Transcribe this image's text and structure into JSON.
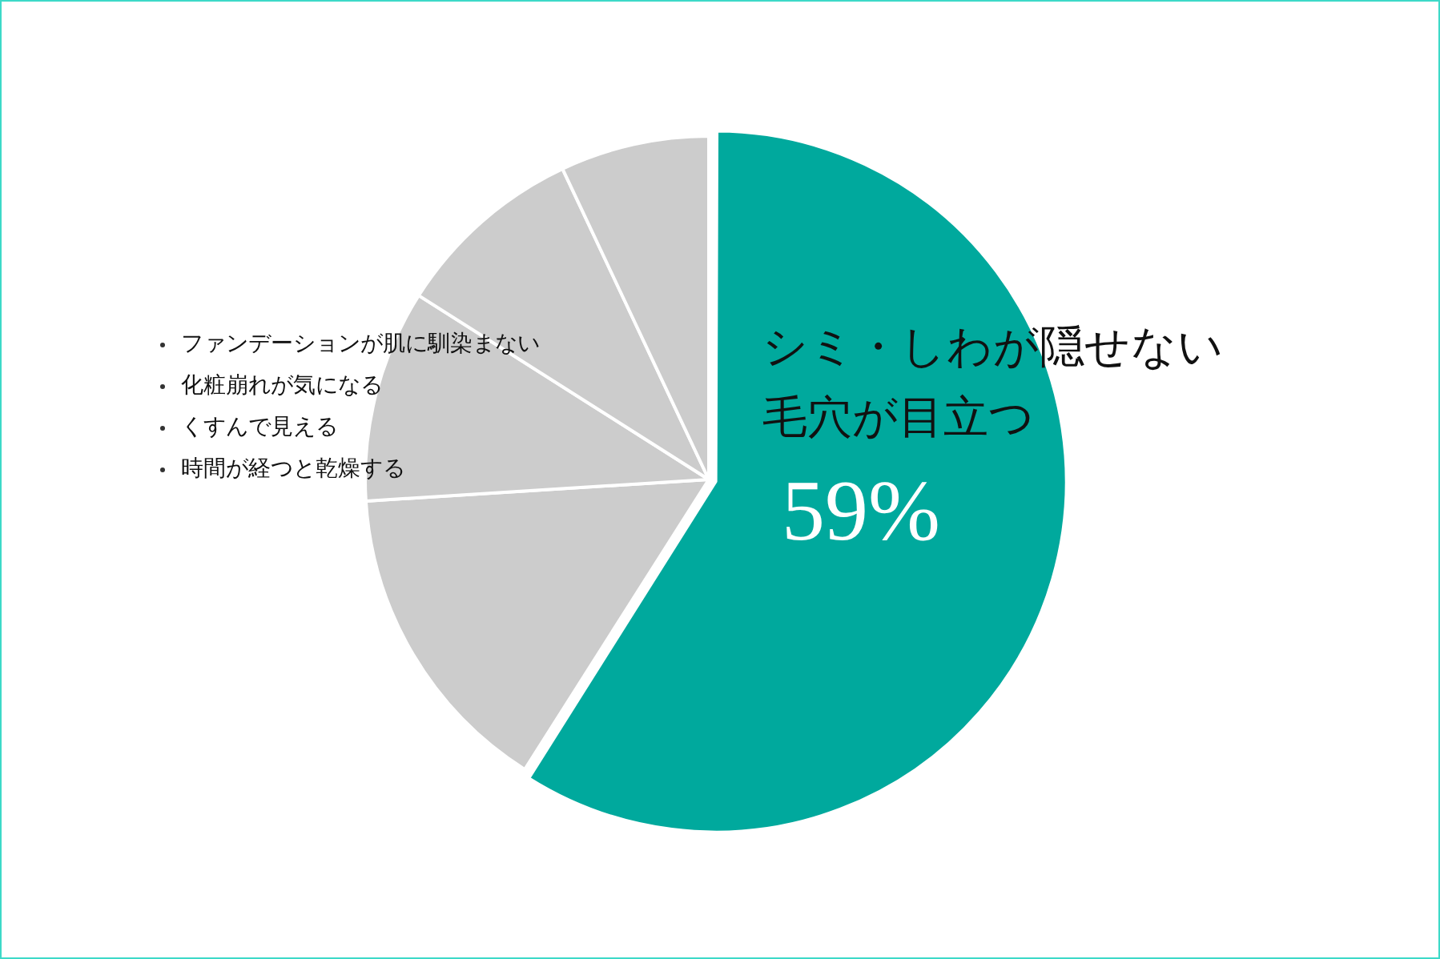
{
  "chart_data": {
    "type": "pie",
    "categories": [
      "シミ・しわが隠せない毛穴が目立つ",
      null,
      null,
      null,
      null
    ],
    "values": [
      59,
      15,
      10,
      9,
      7
    ],
    "colors": [
      "#00a99d",
      "#cccccc",
      "#cccccc",
      "#cccccc",
      "#cccccc"
    ],
    "value_labels": [
      "59%",
      null,
      null,
      null,
      null
    ],
    "annotations": [
      "ファンデーションが肌に馴染まない",
      "化粧崩れが気になる",
      "くすんで見える",
      "時間が経つと乾燥する"
    ],
    "legend": false
  }
}
